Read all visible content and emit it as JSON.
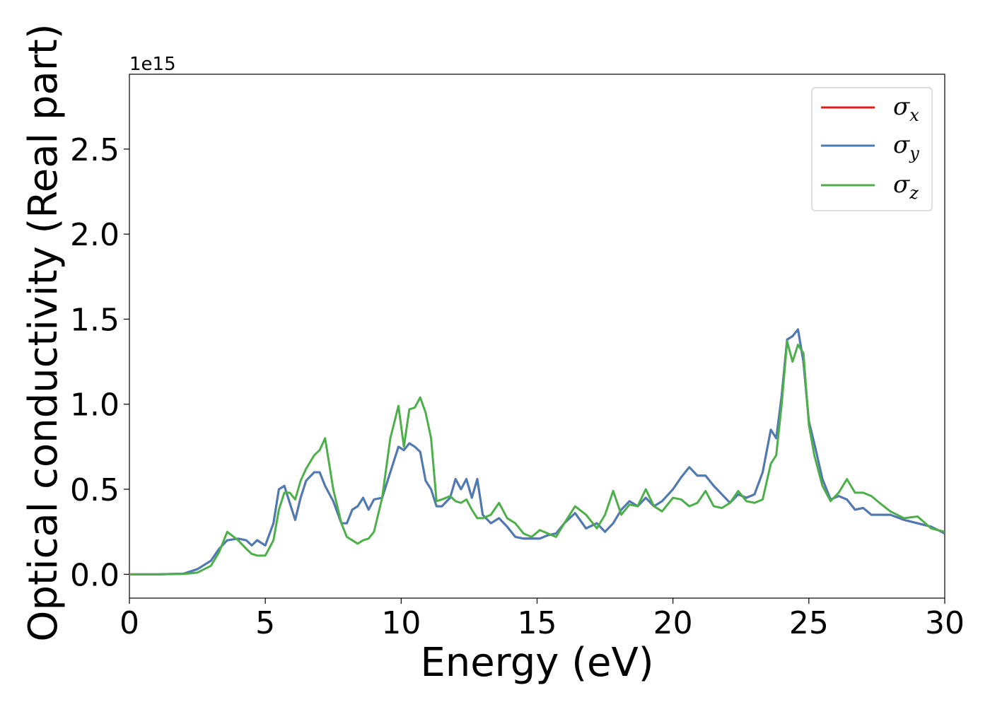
{
  "chart_data": {
    "type": "line",
    "xlabel": "Energy (eV)",
    "ylabel": "Optical conductivity (Real part)",
    "y_offset_label": "1e15",
    "xlim": [
      0,
      30
    ],
    "ylim": [
      -0.14,
      2.94
    ],
    "x_ticks": [
      0,
      5,
      10,
      15,
      20,
      25,
      30
    ],
    "x_tick_labels": [
      "0",
      "5",
      "10",
      "15",
      "20",
      "25",
      "30"
    ],
    "y_ticks": [
      0.0,
      0.5,
      1.0,
      1.5,
      2.0,
      2.5
    ],
    "y_tick_labels": [
      "0.0",
      "0.5",
      "1.0",
      "1.5",
      "2.0",
      "2.5"
    ],
    "grid": false,
    "legend_position": "top-right",
    "x": [
      0,
      1,
      2,
      2.5,
      3,
      3.3,
      3.6,
      4.0,
      4.3,
      4.5,
      4.7,
      5.0,
      5.3,
      5.5,
      5.7,
      5.9,
      6.1,
      6.3,
      6.5,
      6.8,
      7.0,
      7.2,
      7.5,
      7.8,
      8.0,
      8.2,
      8.4,
      8.6,
      8.8,
      9.0,
      9.3,
      9.6,
      9.9,
      10.1,
      10.3,
      10.5,
      10.7,
      10.9,
      11.1,
      11.3,
      11.5,
      11.8,
      12.0,
      12.2,
      12.4,
      12.6,
      12.8,
      13.0,
      13.3,
      13.6,
      13.9,
      14.2,
      14.5,
      14.8,
      15.1,
      15.4,
      15.7,
      16.0,
      16.4,
      16.8,
      17.2,
      17.5,
      17.8,
      18.1,
      18.4,
      18.7,
      19.0,
      19.3,
      19.6,
      20.0,
      20.3,
      20.6,
      20.9,
      21.2,
      21.5,
      21.8,
      22.1,
      22.4,
      22.7,
      23.0,
      23.3,
      23.6,
      23.8,
      24.0,
      24.2,
      24.4,
      24.6,
      24.8,
      25.0,
      25.2,
      25.5,
      25.8,
      26.1,
      26.4,
      26.7,
      27.0,
      27.3,
      27.6,
      28.0,
      28.5,
      29.0,
      29.5,
      30.0
    ],
    "series": [
      {
        "name": "x",
        "color": "#e41a1c",
        "values": [
          0,
          0,
          0.004,
          0.03,
          0.08,
          0.15,
          0.2,
          0.21,
          0.2,
          0.17,
          0.2,
          0.17,
          0.3,
          0.5,
          0.52,
          0.42,
          0.32,
          0.45,
          0.55,
          0.6,
          0.6,
          0.52,
          0.43,
          0.3,
          0.3,
          0.38,
          0.4,
          0.45,
          0.38,
          0.44,
          0.45,
          0.6,
          0.75,
          0.73,
          0.77,
          0.75,
          0.72,
          0.55,
          0.5,
          0.4,
          0.4,
          0.45,
          0.56,
          0.5,
          0.56,
          0.45,
          0.56,
          0.35,
          0.3,
          0.33,
          0.28,
          0.22,
          0.21,
          0.21,
          0.21,
          0.23,
          0.24,
          0.3,
          0.36,
          0.27,
          0.3,
          0.25,
          0.3,
          0.38,
          0.43,
          0.4,
          0.45,
          0.4,
          0.43,
          0.5,
          0.57,
          0.63,
          0.58,
          0.58,
          0.52,
          0.47,
          0.42,
          0.47,
          0.45,
          0.47,
          0.6,
          0.85,
          0.8,
          1.05,
          1.38,
          1.4,
          1.44,
          1.25,
          0.9,
          0.77,
          0.56,
          0.44,
          0.46,
          0.44,
          0.38,
          0.39,
          0.35,
          0.35,
          0.35,
          0.32,
          0.3,
          0.28,
          0.24
        ]
      },
      {
        "name": "y",
        "color": "#4a7cb5",
        "values": [
          0,
          0,
          0.004,
          0.03,
          0.08,
          0.15,
          0.2,
          0.21,
          0.2,
          0.17,
          0.2,
          0.17,
          0.3,
          0.5,
          0.52,
          0.42,
          0.32,
          0.45,
          0.55,
          0.6,
          0.6,
          0.52,
          0.43,
          0.3,
          0.3,
          0.38,
          0.4,
          0.45,
          0.38,
          0.44,
          0.45,
          0.6,
          0.75,
          0.73,
          0.77,
          0.75,
          0.72,
          0.55,
          0.5,
          0.4,
          0.4,
          0.45,
          0.56,
          0.5,
          0.56,
          0.45,
          0.56,
          0.35,
          0.3,
          0.33,
          0.28,
          0.22,
          0.21,
          0.21,
          0.21,
          0.23,
          0.24,
          0.3,
          0.36,
          0.27,
          0.3,
          0.25,
          0.3,
          0.38,
          0.43,
          0.4,
          0.45,
          0.4,
          0.43,
          0.5,
          0.57,
          0.63,
          0.58,
          0.58,
          0.52,
          0.47,
          0.42,
          0.47,
          0.45,
          0.47,
          0.6,
          0.85,
          0.8,
          1.05,
          1.38,
          1.4,
          1.44,
          1.25,
          0.9,
          0.77,
          0.56,
          0.44,
          0.46,
          0.44,
          0.38,
          0.39,
          0.35,
          0.35,
          0.35,
          0.32,
          0.3,
          0.28,
          0.24
        ]
      },
      {
        "name": "z",
        "color": "#4daf4a",
        "values": [
          0,
          0,
          0.002,
          0.01,
          0.05,
          0.13,
          0.25,
          0.2,
          0.15,
          0.12,
          0.11,
          0.11,
          0.2,
          0.38,
          0.48,
          0.48,
          0.44,
          0.55,
          0.62,
          0.7,
          0.73,
          0.8,
          0.5,
          0.3,
          0.22,
          0.2,
          0.18,
          0.2,
          0.21,
          0.25,
          0.45,
          0.8,
          0.99,
          0.75,
          0.97,
          0.98,
          1.04,
          0.95,
          0.8,
          0.43,
          0.44,
          0.46,
          0.43,
          0.42,
          0.44,
          0.38,
          0.33,
          0.33,
          0.35,
          0.42,
          0.33,
          0.3,
          0.24,
          0.22,
          0.26,
          0.24,
          0.22,
          0.3,
          0.4,
          0.35,
          0.27,
          0.35,
          0.49,
          0.35,
          0.41,
          0.4,
          0.5,
          0.4,
          0.37,
          0.45,
          0.44,
          0.4,
          0.42,
          0.49,
          0.4,
          0.39,
          0.42,
          0.49,
          0.43,
          0.42,
          0.44,
          0.65,
          0.7,
          1.0,
          1.37,
          1.25,
          1.35,
          1.3,
          0.88,
          0.7,
          0.52,
          0.43,
          0.48,
          0.56,
          0.48,
          0.48,
          0.46,
          0.42,
          0.37,
          0.33,
          0.34,
          0.27,
          0.25
        ]
      }
    ]
  }
}
